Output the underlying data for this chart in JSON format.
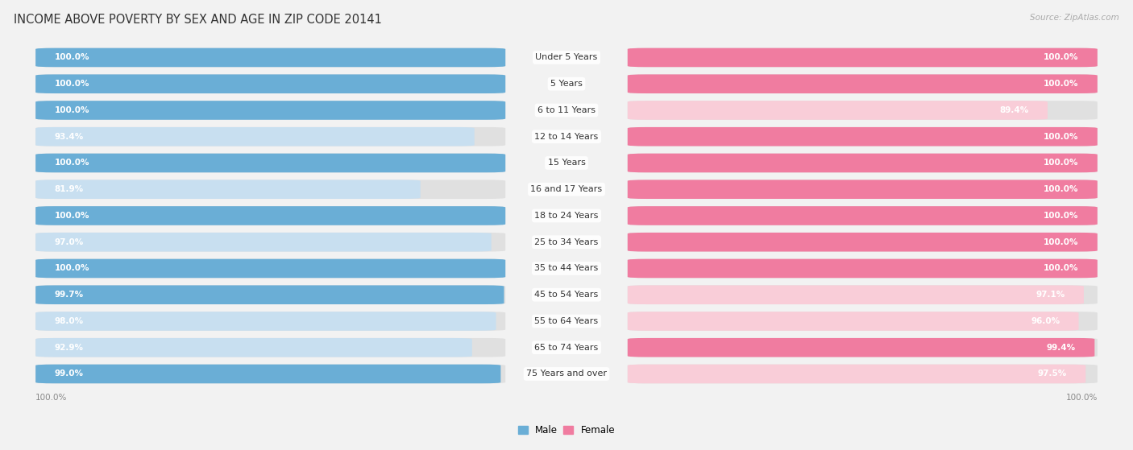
{
  "title": "INCOME ABOVE POVERTY BY SEX AND AGE IN ZIP CODE 20141",
  "source": "Source: ZipAtlas.com",
  "categories": [
    "Under 5 Years",
    "5 Years",
    "6 to 11 Years",
    "12 to 14 Years",
    "15 Years",
    "16 and 17 Years",
    "18 to 24 Years",
    "25 to 34 Years",
    "35 to 44 Years",
    "45 to 54 Years",
    "55 to 64 Years",
    "65 to 74 Years",
    "75 Years and over"
  ],
  "male_values": [
    100.0,
    100.0,
    100.0,
    93.4,
    100.0,
    81.9,
    100.0,
    97.0,
    100.0,
    99.7,
    98.0,
    92.9,
    99.0
  ],
  "female_values": [
    100.0,
    100.0,
    89.4,
    100.0,
    100.0,
    100.0,
    100.0,
    100.0,
    100.0,
    97.1,
    96.0,
    99.4,
    97.5
  ],
  "male_color": "#6aaed6",
  "female_color": "#f07ca0",
  "male_light_color": "#c8dff0",
  "female_light_color": "#f9cdd8",
  "container_color": "#e0e0e0",
  "background_color": "#f2f2f2",
  "title_fontsize": 10.5,
  "label_fontsize": 8.0,
  "value_fontsize": 7.5,
  "axis_label_fontsize": 7.5,
  "legend_fontsize": 8.5
}
